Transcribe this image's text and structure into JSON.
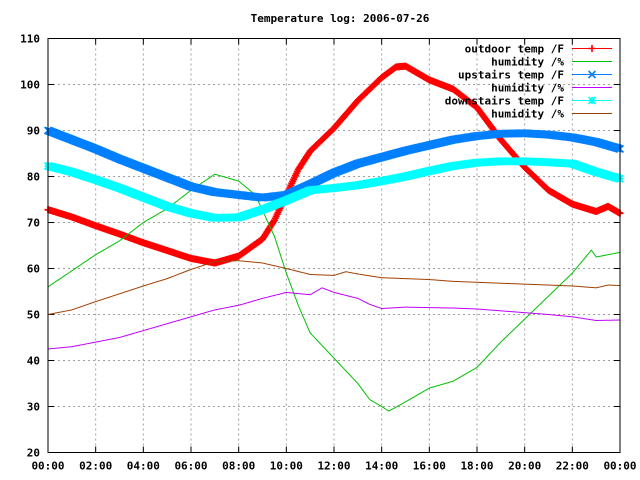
{
  "chart_data": {
    "type": "line",
    "title": "Temperature log: 2006-07-26",
    "xlabel": "",
    "ylabel": "",
    "x_ticks": [
      "00:00",
      "02:00",
      "04:00",
      "06:00",
      "08:00",
      "10:00",
      "12:00",
      "14:00",
      "16:00",
      "18:00",
      "20:00",
      "22:00",
      "00:00"
    ],
    "xlim": [
      0,
      24
    ],
    "ylim": [
      20,
      110
    ],
    "y_ticks": [
      20,
      30,
      40,
      50,
      60,
      70,
      80,
      90,
      100,
      110
    ],
    "grid": true,
    "legend_position": "top-right",
    "series": [
      {
        "name": "outdoor temp /F",
        "color": "#ff0000",
        "marker": "plus",
        "points": [
          [
            0,
            72.8
          ],
          [
            1,
            71.2
          ],
          [
            2,
            69.3
          ],
          [
            3,
            67.5
          ],
          [
            4,
            65.6
          ],
          [
            5,
            63.9
          ],
          [
            6,
            62.2
          ],
          [
            7,
            61.2
          ],
          [
            8,
            62.7
          ],
          [
            9,
            66.4
          ],
          [
            9.5,
            70.5
          ],
          [
            10,
            76
          ],
          [
            10.5,
            81.5
          ],
          [
            11,
            85.5
          ],
          [
            12,
            90.5
          ],
          [
            13,
            96.5
          ],
          [
            14,
            101.5
          ],
          [
            14.6,
            103.8
          ],
          [
            15,
            104
          ],
          [
            15.5,
            102.5
          ],
          [
            16,
            101
          ],
          [
            17,
            99
          ],
          [
            18,
            95
          ],
          [
            19,
            88
          ],
          [
            20,
            82
          ],
          [
            21,
            77
          ],
          [
            22,
            74
          ],
          [
            23,
            72.4
          ],
          [
            23.5,
            73.5
          ],
          [
            24,
            72
          ]
        ]
      },
      {
        "name": "humidity /%",
        "color": "#00c000",
        "marker": "none",
        "points": [
          [
            0,
            56
          ],
          [
            1,
            59.5
          ],
          [
            2,
            63
          ],
          [
            3,
            66
          ],
          [
            4,
            70
          ],
          [
            5,
            73
          ],
          [
            6,
            77
          ],
          [
            7,
            80.5
          ],
          [
            8,
            79
          ],
          [
            8.7,
            76
          ],
          [
            9.5,
            67
          ],
          [
            10,
            59
          ],
          [
            10.5,
            52
          ],
          [
            11,
            46
          ],
          [
            12,
            40.5
          ],
          [
            13,
            35
          ],
          [
            13.5,
            31.5
          ],
          [
            14,
            30
          ],
          [
            14.3,
            29
          ],
          [
            15,
            31
          ],
          [
            16,
            34
          ],
          [
            17,
            35.5
          ],
          [
            18,
            38.5
          ],
          [
            19,
            44
          ],
          [
            20,
            49
          ],
          [
            21,
            54
          ],
          [
            22,
            59
          ],
          [
            22.8,
            64
          ],
          [
            23,
            62.5
          ],
          [
            24,
            63.5
          ]
        ]
      },
      {
        "name": "upstairs temp /F",
        "color": "#0080ff",
        "marker": "cross",
        "points": [
          [
            0,
            90
          ],
          [
            1,
            88
          ],
          [
            2,
            86
          ],
          [
            3,
            83.8
          ],
          [
            4,
            81.8
          ],
          [
            5,
            79.8
          ],
          [
            6,
            77.8
          ],
          [
            7,
            76.6
          ],
          [
            8,
            76
          ],
          [
            9,
            75.4
          ],
          [
            10,
            76
          ],
          [
            11,
            78.3
          ],
          [
            12,
            80.8
          ],
          [
            13,
            82.8
          ],
          [
            14,
            84.2
          ],
          [
            15,
            85.6
          ],
          [
            16,
            86.8
          ],
          [
            17,
            88
          ],
          [
            18,
            88.8
          ],
          [
            19,
            89.3
          ],
          [
            20,
            89.4
          ],
          [
            21,
            89.1
          ],
          [
            22,
            88.5
          ],
          [
            23,
            87.5
          ],
          [
            24,
            86
          ]
        ]
      },
      {
        "name": "humidity /%",
        "color": "#c000ff",
        "marker": "none",
        "points": [
          [
            0,
            42.5
          ],
          [
            1,
            43
          ],
          [
            2,
            44
          ],
          [
            3,
            45
          ],
          [
            4,
            46.5
          ],
          [
            5,
            48
          ],
          [
            6,
            49.5
          ],
          [
            7,
            51
          ],
          [
            8,
            52
          ],
          [
            9,
            53.5
          ],
          [
            10,
            54.8
          ],
          [
            11,
            54.3
          ],
          [
            11.5,
            55.8
          ],
          [
            12,
            54.8
          ],
          [
            13,
            53.5
          ],
          [
            13.5,
            52.2
          ],
          [
            14,
            51.3
          ],
          [
            15,
            51.6
          ],
          [
            16,
            51.5
          ],
          [
            17,
            51.4
          ],
          [
            18,
            51.2
          ],
          [
            19,
            50.8
          ],
          [
            20,
            50.4
          ],
          [
            21,
            50
          ],
          [
            22,
            49.5
          ],
          [
            23,
            48.7
          ],
          [
            24,
            48.8
          ]
        ]
      },
      {
        "name": "downstairs temp /F",
        "color": "#00ffff",
        "marker": "star",
        "points": [
          [
            0,
            82.3
          ],
          [
            1,
            81
          ],
          [
            2,
            79.3
          ],
          [
            3,
            77.5
          ],
          [
            4,
            75.5
          ],
          [
            5,
            73.5
          ],
          [
            6,
            72
          ],
          [
            7,
            71
          ],
          [
            8,
            71.1
          ],
          [
            9,
            72.8
          ],
          [
            10,
            74.8
          ],
          [
            11,
            77
          ],
          [
            12,
            77.5
          ],
          [
            13,
            78.1
          ],
          [
            14,
            79
          ],
          [
            15,
            80
          ],
          [
            16,
            81.2
          ],
          [
            17,
            82.3
          ],
          [
            18,
            83
          ],
          [
            19,
            83.3
          ],
          [
            20,
            83.3
          ],
          [
            21,
            83.1
          ],
          [
            22,
            82.8
          ],
          [
            23,
            81
          ],
          [
            24,
            79.5
          ]
        ]
      },
      {
        "name": "humidity /%",
        "color": "#a04000",
        "marker": "none",
        "points": [
          [
            0,
            50
          ],
          [
            1,
            51
          ],
          [
            2,
            52.8
          ],
          [
            3,
            54.5
          ],
          [
            4,
            56.2
          ],
          [
            5,
            57.8
          ],
          [
            6,
            59.8
          ],
          [
            7,
            61.5
          ],
          [
            8,
            61.7
          ],
          [
            9,
            61.2
          ],
          [
            10,
            60
          ],
          [
            11,
            58.7
          ],
          [
            12,
            58.5
          ],
          [
            12.5,
            59.3
          ],
          [
            13,
            58.8
          ],
          [
            14,
            58
          ],
          [
            15,
            57.8
          ],
          [
            16,
            57.6
          ],
          [
            17,
            57.2
          ],
          [
            18,
            57
          ],
          [
            19,
            56.8
          ],
          [
            20,
            56.6
          ],
          [
            21,
            56.4
          ],
          [
            22,
            56.2
          ],
          [
            23,
            55.8
          ],
          [
            23.5,
            56.4
          ],
          [
            24,
            56.3
          ]
        ]
      }
    ]
  }
}
